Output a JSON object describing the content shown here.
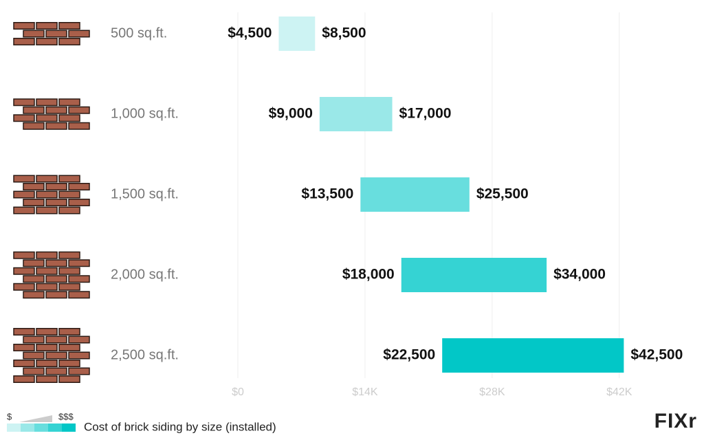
{
  "chart_data": {
    "type": "floating_bar",
    "categories": [
      "500 sq.ft.",
      "1,000 sq.ft.",
      "1,500 sq.ft.",
      "2,000 sq.ft.",
      "2,500 sq.ft."
    ],
    "low": [
      4500,
      9000,
      13500,
      18000,
      22500
    ],
    "high": [
      8500,
      17000,
      25500,
      34000,
      42500
    ],
    "low_labels": [
      "$4,500",
      "$9,000",
      "$13,500",
      "$18,000",
      "$22,500"
    ],
    "high_labels": [
      "$8,500",
      "$17,000",
      "$25,500",
      "$34,000",
      "$42,500"
    ],
    "colors": [
      "#cdf3f3",
      "#9ae8e8",
      "#68dede",
      "#35d3d3",
      "#02c7c7"
    ],
    "xlim": [
      0,
      48000
    ],
    "xticks": [
      {
        "value": 0,
        "label": "$0"
      },
      {
        "value": 14000,
        "label": "$14K"
      },
      {
        "value": 28000,
        "label": "$28K"
      },
      {
        "value": 42000,
        "label": "$42K"
      }
    ],
    "grid": true,
    "legend": {
      "low": "$",
      "high": "$$$",
      "label": "Cost of brick siding by size (installed)"
    },
    "logo": "FIXr"
  }
}
